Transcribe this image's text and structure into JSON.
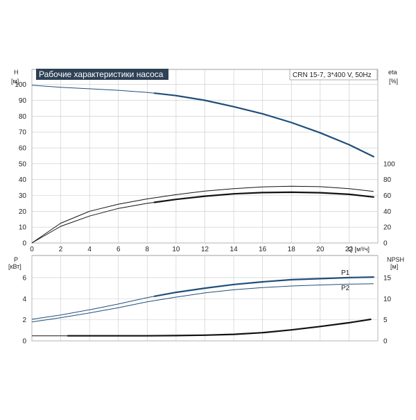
{
  "title": "Рабочие характеристики насоса",
  "model": "CRN 15-7, 3*400 V, 50Hz",
  "colors": {
    "dark_blue": "#1f4e79",
    "black": "#111111",
    "grid": "#c8c8c8",
    "title_bg": "#2e4155"
  },
  "chart_data": [
    {
      "type": "line",
      "name": "head-efficiency",
      "left_axis": {
        "label": "H",
        "unit": "[м]",
        "ticks": [
          "0",
          "10",
          "20",
          "30",
          "40",
          "50",
          "60",
          "70",
          "80",
          "90",
          "100"
        ]
      },
      "right_axis": {
        "label": "eta",
        "unit": "[%]",
        "ticks": [
          "0",
          "20",
          "40",
          "60",
          "80",
          "100"
        ]
      },
      "x_axis": {
        "label": "Q [м³/ч]",
        "ticks": [
          "0",
          "2",
          "4",
          "6",
          "8",
          "10",
          "12",
          "14",
          "16",
          "18",
          "20",
          "22"
        ],
        "range": [
          0,
          24
        ]
      },
      "ylim": [
        0,
        100
      ],
      "eta_range": [
        0,
        100
      ],
      "series": [
        {
          "key": "H",
          "axis": "left",
          "style": "blue-bold",
          "thin_until": 8.5,
          "x": [
            0,
            2,
            4,
            6,
            8,
            10,
            12,
            14,
            16,
            18,
            20,
            22,
            23.7
          ],
          "values": [
            99.5,
            98.2,
            97.3,
            96.3,
            95.0,
            93.0,
            90.0,
            86.0,
            81.5,
            76.0,
            69.5,
            62.0,
            54.5
          ]
        },
        {
          "key": "eta_outer",
          "axis": "left",
          "style": "black-thin",
          "x": [
            0,
            2,
            4,
            6,
            8,
            10,
            12,
            14,
            16,
            18,
            20,
            22,
            23.7
          ],
          "values": [
            0,
            12.5,
            20.0,
            24.5,
            27.8,
            30.5,
            32.7,
            34.3,
            35.4,
            35.8,
            35.5,
            34.3,
            32.5
          ]
        },
        {
          "key": "eta_inner",
          "axis": "left",
          "style": "black-bold",
          "thin_until": 8.5,
          "x": [
            0,
            2,
            4,
            6,
            8,
            10,
            12,
            14,
            16,
            18,
            20,
            22,
            23.7
          ],
          "values": [
            0,
            10.5,
            17.0,
            21.8,
            25.0,
            27.5,
            29.5,
            31.0,
            31.8,
            32.0,
            31.7,
            30.7,
            29.0
          ]
        }
      ]
    },
    {
      "type": "line",
      "name": "power-npsh",
      "left_axis": {
        "label": "P",
        "unit": "[кВт]",
        "ticks": [
          "0",
          "2",
          "4",
          "6"
        ]
      },
      "right_axis": {
        "label": "NPSH",
        "unit": "[м]",
        "ticks": [
          "0",
          "5",
          "10",
          "15"
        ]
      },
      "ylim": [
        0,
        7.2
      ],
      "npsh_range": [
        0,
        18
      ],
      "series": [
        {
          "key": "P1",
          "name": "P1",
          "axis": "left",
          "style": "blue-bold",
          "thin_until": 8.5,
          "x": [
            0,
            2,
            4,
            6,
            8,
            10,
            12,
            14,
            16,
            18,
            20,
            22,
            23.7
          ],
          "values": [
            2.05,
            2.45,
            2.95,
            3.5,
            4.1,
            4.6,
            5.0,
            5.35,
            5.6,
            5.8,
            5.9,
            6.0,
            6.05
          ]
        },
        {
          "key": "P2",
          "name": "P2",
          "axis": "left",
          "style": "blue-thin",
          "x": [
            0,
            2,
            4,
            6,
            8,
            10,
            12,
            14,
            16,
            18,
            20,
            22,
            23.7
          ],
          "values": [
            1.8,
            2.2,
            2.65,
            3.15,
            3.7,
            4.15,
            4.55,
            4.85,
            5.05,
            5.2,
            5.3,
            5.38,
            5.42
          ]
        },
        {
          "key": "NPSH",
          "axis": "right",
          "style": "black-bold",
          "thin_until": 2.5,
          "x": [
            0,
            2.5,
            4,
            6,
            8,
            10,
            12,
            14,
            16,
            18,
            20,
            22,
            23.5
          ],
          "values": [
            1.2,
            1.2,
            1.2,
            1.2,
            1.2,
            1.25,
            1.35,
            1.55,
            1.95,
            2.6,
            3.4,
            4.3,
            5.1
          ]
        }
      ]
    }
  ]
}
